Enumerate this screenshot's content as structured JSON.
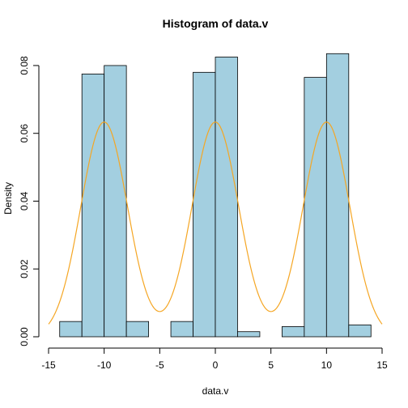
{
  "chart_data": {
    "type": "bar",
    "title": "Histogram of data.v",
    "xlabel": "data.v",
    "ylabel": "Density",
    "xlim": [
      -15,
      15
    ],
    "ylim": [
      0,
      0.085
    ],
    "x_ticks": [
      "-15",
      "-10",
      "-5",
      "0",
      "5",
      "10",
      "15"
    ],
    "y_ticks": [
      "0.00",
      "0.02",
      "0.04",
      "0.06",
      "0.08"
    ],
    "bin_edges": [
      -14,
      -12,
      -10,
      -8,
      -6,
      -4,
      -2,
      0,
      2,
      4,
      6,
      8,
      10,
      12,
      14
    ],
    "values": [
      0.0045,
      0.0775,
      0.08,
      0.0045,
      0.0,
      0.0045,
      0.078,
      0.0825,
      0.0015,
      0.0,
      0.003,
      0.0765,
      0.0835,
      0.0035
    ],
    "bar_color": "#a3cfe0",
    "curve": {
      "type": "line",
      "color": "#f5a623",
      "means": [
        -10,
        0,
        10
      ],
      "sd": 2.1,
      "weight": 0.3333
    }
  }
}
